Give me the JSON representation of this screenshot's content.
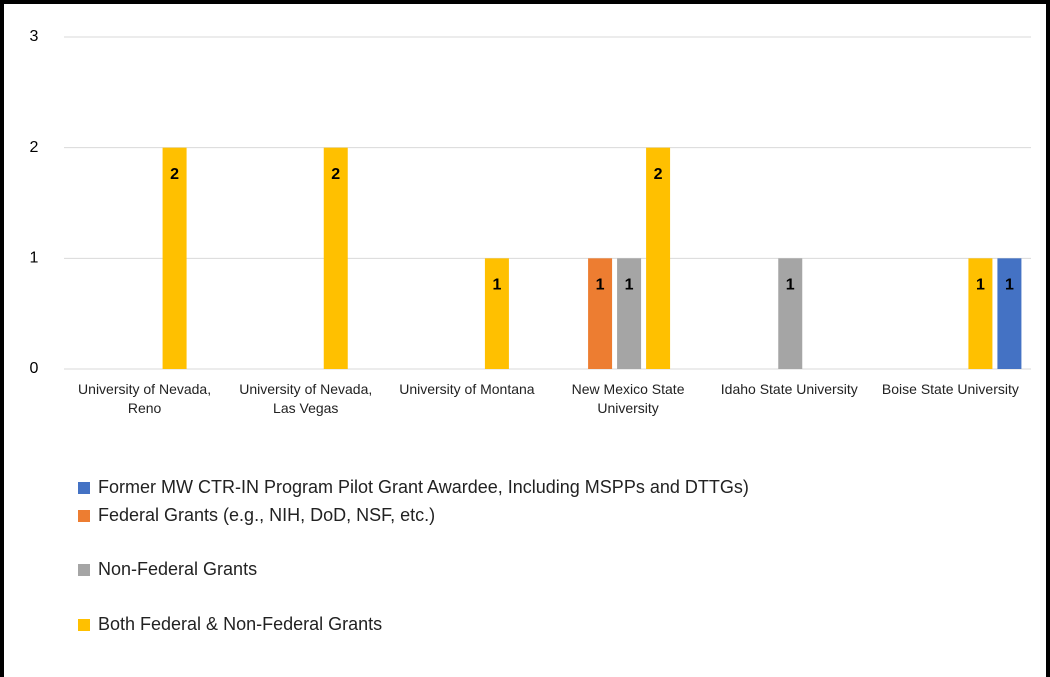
{
  "chart_data": {
    "type": "bar",
    "categories": [
      "University of Nevada, Reno",
      "University of Nevada, Las Vegas",
      "University of Montana",
      "New Mexico State University",
      "Idaho State University",
      "Boise State University"
    ],
    "series": [
      {
        "name": "Federal Grants (e.g., NIH, DoD, NSF, etc.)",
        "color": "#ed7d31",
        "values": [
          null,
          null,
          null,
          1,
          null,
          null
        ]
      },
      {
        "name": "Non-Federal Grants",
        "color": "#a5a5a5",
        "values": [
          null,
          null,
          null,
          1,
          1,
          null
        ]
      },
      {
        "name": "Both Federal & Non-Federal Grants",
        "color": "#ffc000",
        "values": [
          2,
          2,
          1,
          2,
          null,
          1
        ]
      },
      {
        "name": "Former MW CTR-IN Program Pilot Grant Awardee, Including MSPPs and DTTGs)",
        "color": "#4472c4",
        "values": [
          null,
          null,
          null,
          null,
          null,
          1
        ]
      }
    ],
    "legend_order": [
      3,
      0,
      1,
      2
    ],
    "ylim": [
      0,
      3
    ],
    "yticks": [
      0,
      1,
      2,
      3
    ],
    "grid": true,
    "data_labels": true
  }
}
